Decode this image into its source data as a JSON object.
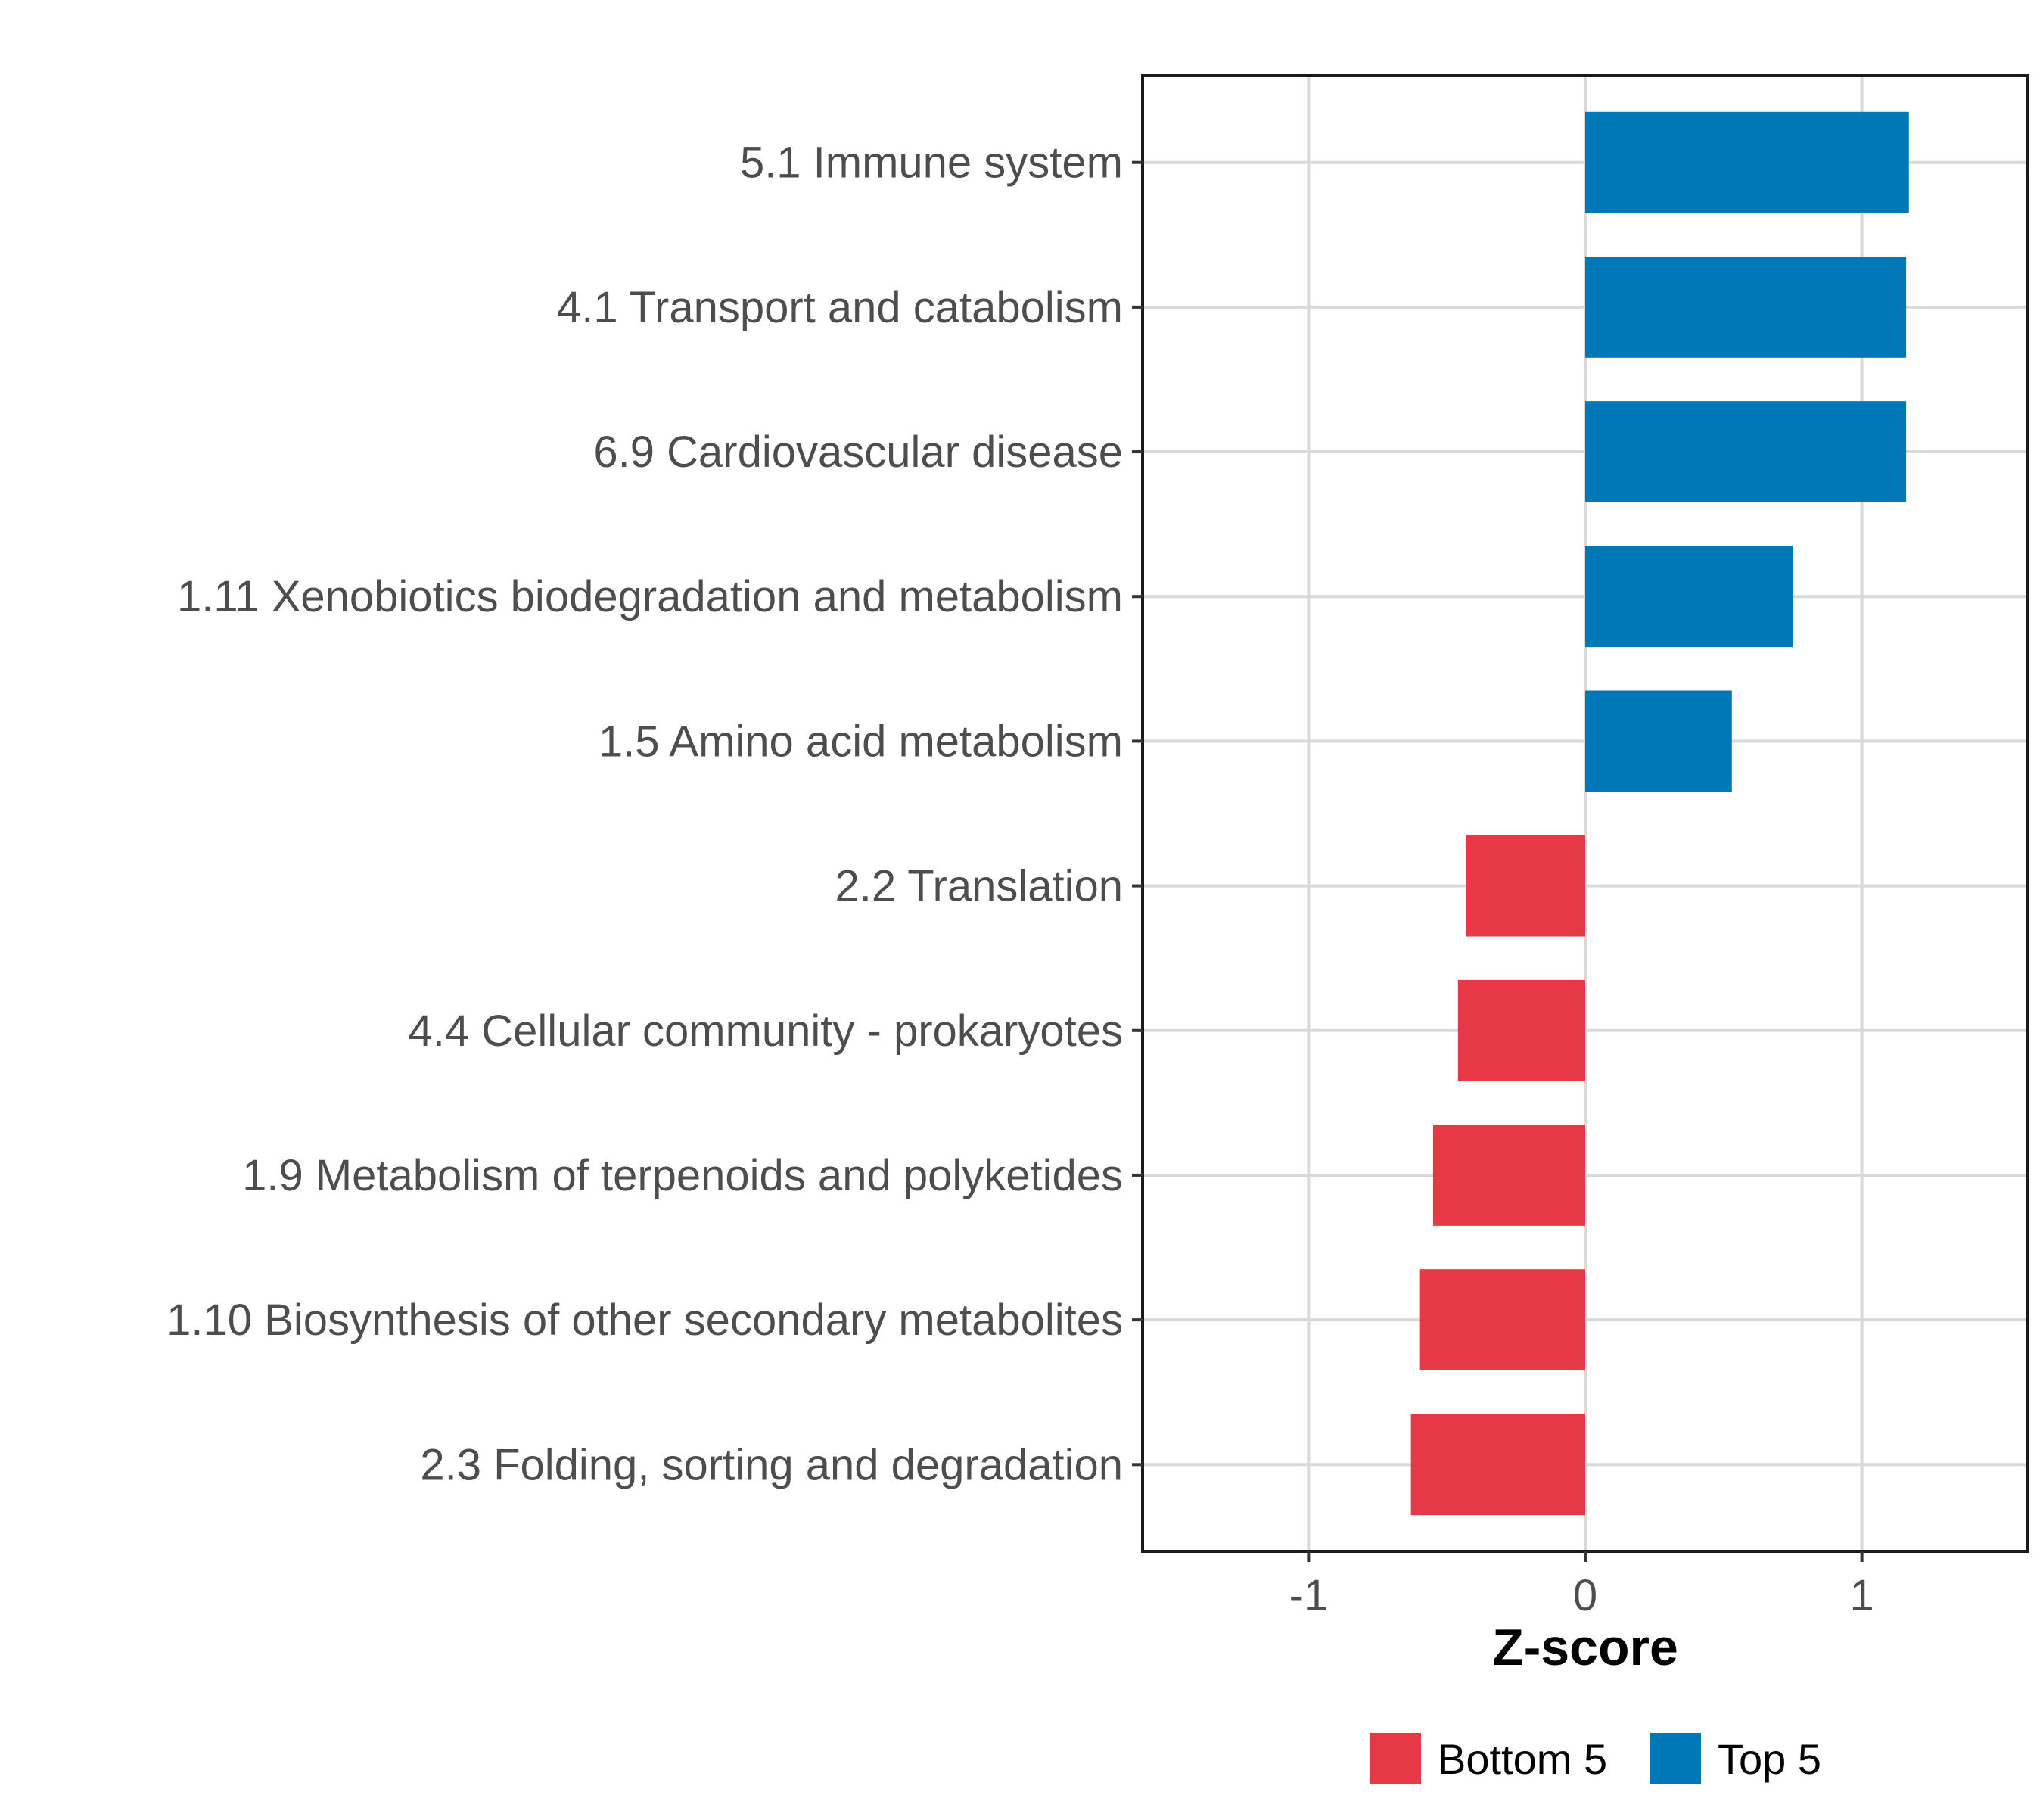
{
  "chart_data": {
    "type": "bar",
    "orientation": "horizontal",
    "title": "",
    "xlabel": "Z-score",
    "ylabel": "",
    "xlim": [
      -1.6,
      1.6
    ],
    "xticks": [
      -1,
      0,
      1
    ],
    "xtick_labels": [
      "-1",
      "0",
      "1"
    ],
    "grid": true,
    "categories": [
      "5.1 Immune system",
      "4.1 Transport and catabolism",
      "6.9 Cardiovascular disease",
      "1.11 Xenobiotics biodegradation and metabolism",
      "1.5 Amino acid metabolism",
      "2.2 Translation",
      "4.4 Cellular community - prokaryotes",
      "1.9 Metabolism of terpenoids and polyketides",
      "1.10 Biosynthesis of other secondary metabolites",
      "2.3 Folding, sorting and degradation"
    ],
    "values": [
      1.17,
      1.16,
      1.16,
      0.75,
      0.53,
      -0.43,
      -0.46,
      -0.55,
      -0.6,
      -0.63
    ],
    "groups": [
      "Top 5",
      "Top 5",
      "Top 5",
      "Top 5",
      "Top 5",
      "Bottom 5",
      "Bottom 5",
      "Bottom 5",
      "Bottom 5",
      "Bottom 5"
    ],
    "legend": {
      "position": "bottom",
      "entries": [
        {
          "label": "Bottom 5",
          "color": "#E63946"
        },
        {
          "label": "Top 5",
          "color": "#0077B6"
        }
      ]
    }
  }
}
